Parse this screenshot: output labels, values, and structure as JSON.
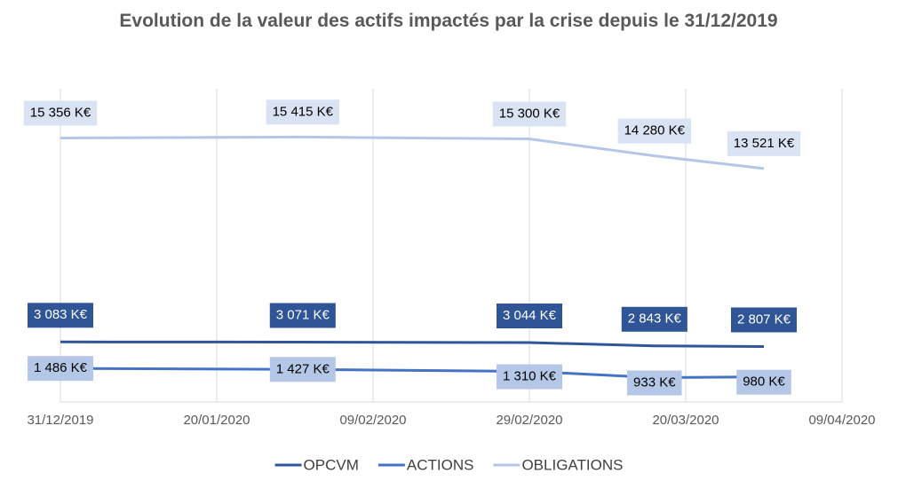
{
  "chart_data": {
    "type": "line",
    "title": "Evolution de la valeur des actifs impactés par la crise depuis le 31/12/2019",
    "x": [
      "31/12/2019",
      "31/01/2020",
      "29/02/2020",
      "16/03/2020",
      "30/03/2020"
    ],
    "xlim": [
      "31/12/2019",
      "09/04/2020"
    ],
    "xticks": [
      "31/12/2019",
      "20/01/2020",
      "09/02/2020",
      "29/02/2020",
      "20/03/2020",
      "09/04/2020"
    ],
    "ylim": [
      0,
      18000
    ],
    "grid": true,
    "legend": "bottom",
    "series": [
      {
        "name": "OPCVM",
        "color": "#2f5597",
        "label_fill": "#2f5597",
        "label_color": "#ffffff",
        "values": [
          3083,
          3071,
          3044,
          2843,
          2807
        ],
        "value_labels": [
          "3 083 K€",
          "3 071 K€",
          "3 044 K€",
          "2 843 K€",
          "2 807 K€"
        ]
      },
      {
        "name": "ACTIONS",
        "color": "#4472c4",
        "label_fill": "#b4c7e7",
        "label_color": "#000000",
        "values": [
          1486,
          1427,
          1310,
          933,
          980
        ],
        "value_labels": [
          "1 486 K€",
          "1 427 K€",
          "1 310 K€",
          "933 K€",
          "980 K€"
        ]
      },
      {
        "name": "OBLIGATIONS",
        "color": "#b4c7e7",
        "label_fill": "#dae3f3",
        "label_color": "#000000",
        "values": [
          15356,
          15415,
          15300,
          14280,
          13521
        ],
        "value_labels": [
          "15 356 K€",
          "15 415 K€",
          "15 300 K€",
          "14 280 K€",
          "13 521 K€"
        ]
      }
    ]
  }
}
